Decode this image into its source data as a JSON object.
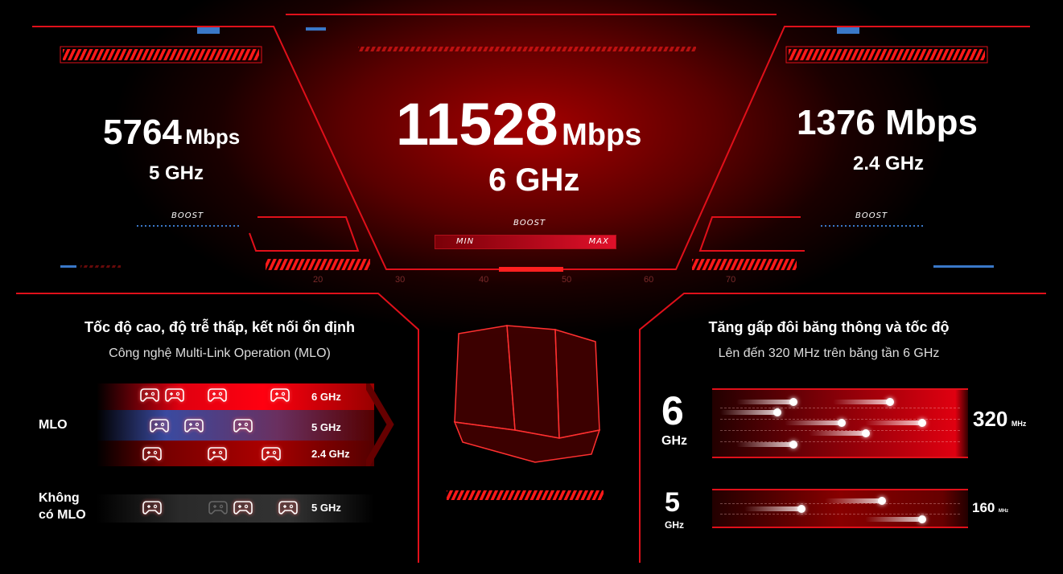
{
  "top": {
    "left": {
      "value": "5764",
      "unit": "Mbps",
      "band": "5 GHz",
      "boost": "BOOST"
    },
    "center": {
      "value": "11528",
      "unit": "Mbps",
      "band": "6 GHz",
      "boost": "BOOST",
      "min": "MIN",
      "max": "MAX"
    },
    "right": {
      "value": "1376",
      "unit": "Mbps",
      "band": "2.4 GHz",
      "boost": "BOOST"
    },
    "scale": [
      "20",
      "30",
      "40",
      "50",
      "60",
      "70"
    ]
  },
  "mlo": {
    "title": "Tốc độ cao, độ trễ thấp, kết nối ổn định",
    "subtitle": "Công nghệ Multi-Link Operation (MLO)",
    "mlo_label": "MLO",
    "no_mlo_label_1": "Không",
    "no_mlo_label_2": "có MLO",
    "bands": [
      "6 GHz",
      "5 GHz",
      "2.4 GHz"
    ],
    "no_mlo_band": "5 GHz",
    "icon": "gamepad-icon"
  },
  "bandwidth": {
    "title": "Tăng gấp đôi băng thông và tốc độ",
    "subtitle": "Lên đến 320 MHz trên băng tần 6 GHz",
    "six": {
      "num": "6",
      "unit": "GHz",
      "width": "320",
      "width_unit": "MHz"
    },
    "five": {
      "num": "5",
      "unit": "GHz",
      "width": "160",
      "width_unit": "MHz"
    },
    "icon": "rocket-icon"
  },
  "colors": {
    "accent": "#ff1a1a",
    "blue": "#3a78c8",
    "bg": "#000000"
  }
}
